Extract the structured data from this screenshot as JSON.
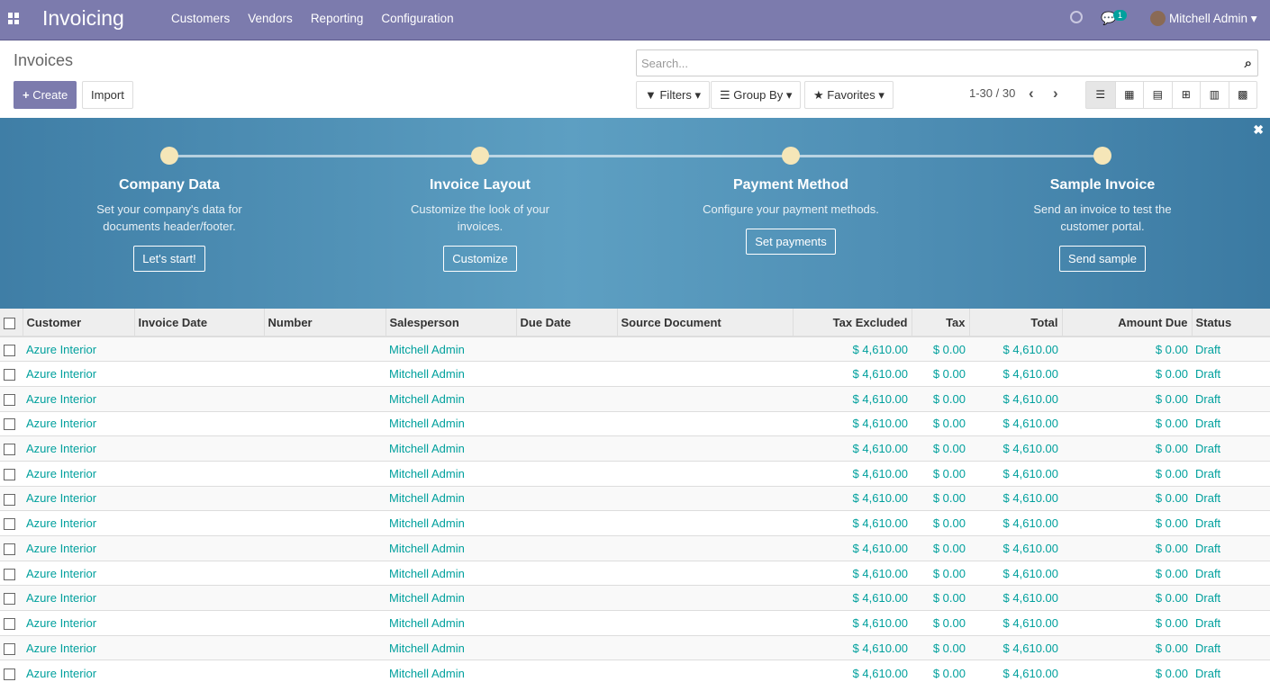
{
  "navbar": {
    "app_title": "Invoicing",
    "menu": [
      "Customers",
      "Vendors",
      "Reporting",
      "Configuration"
    ],
    "message_count": "1",
    "user": "Mitchell Admin"
  },
  "page": {
    "title": "Invoices",
    "create_label": "Create",
    "import_label": "Import"
  },
  "search": {
    "placeholder": "Search...",
    "filters": "Filters",
    "group_by": "Group By",
    "favorites": "Favorites"
  },
  "pager": {
    "text": "1-30 / 30"
  },
  "banner": {
    "steps": [
      {
        "title": "Company Data",
        "desc": "Set your company's data for documents header/footer.",
        "button": "Let's start!"
      },
      {
        "title": "Invoice Layout",
        "desc": "Customize the look of your invoices.",
        "button": "Customize"
      },
      {
        "title": "Payment Method",
        "desc": "Configure your payment methods.",
        "button": "Set payments"
      },
      {
        "title": "Sample Invoice",
        "desc": "Send an invoice to test the customer portal.",
        "button": "Send sample"
      }
    ]
  },
  "table": {
    "columns": [
      "Customer",
      "Invoice Date",
      "Number",
      "Salesperson",
      "Due Date",
      "Source Document",
      "Tax Excluded",
      "Tax",
      "Total",
      "Amount Due",
      "Status"
    ],
    "rows": [
      {
        "customer": "Azure Interior",
        "salesperson": "Mitchell Admin",
        "tax_excluded": "$ 4,610.00",
        "tax": "$ 0.00",
        "total": "$ 4,610.00",
        "amount_due": "$ 0.00",
        "status": "Draft"
      },
      {
        "customer": "Azure Interior",
        "salesperson": "Mitchell Admin",
        "tax_excluded": "$ 4,610.00",
        "tax": "$ 0.00",
        "total": "$ 4,610.00",
        "amount_due": "$ 0.00",
        "status": "Draft"
      },
      {
        "customer": "Azure Interior",
        "salesperson": "Mitchell Admin",
        "tax_excluded": "$ 4,610.00",
        "tax": "$ 0.00",
        "total": "$ 4,610.00",
        "amount_due": "$ 0.00",
        "status": "Draft"
      },
      {
        "customer": "Azure Interior",
        "salesperson": "Mitchell Admin",
        "tax_excluded": "$ 4,610.00",
        "tax": "$ 0.00",
        "total": "$ 4,610.00",
        "amount_due": "$ 0.00",
        "status": "Draft"
      },
      {
        "customer": "Azure Interior",
        "salesperson": "Mitchell Admin",
        "tax_excluded": "$ 4,610.00",
        "tax": "$ 0.00",
        "total": "$ 4,610.00",
        "amount_due": "$ 0.00",
        "status": "Draft"
      },
      {
        "customer": "Azure Interior",
        "salesperson": "Mitchell Admin",
        "tax_excluded": "$ 4,610.00",
        "tax": "$ 0.00",
        "total": "$ 4,610.00",
        "amount_due": "$ 0.00",
        "status": "Draft"
      },
      {
        "customer": "Azure Interior",
        "salesperson": "Mitchell Admin",
        "tax_excluded": "$ 4,610.00",
        "tax": "$ 0.00",
        "total": "$ 4,610.00",
        "amount_due": "$ 0.00",
        "status": "Draft"
      },
      {
        "customer": "Azure Interior",
        "salesperson": "Mitchell Admin",
        "tax_excluded": "$ 4,610.00",
        "tax": "$ 0.00",
        "total": "$ 4,610.00",
        "amount_due": "$ 0.00",
        "status": "Draft"
      },
      {
        "customer": "Azure Interior",
        "salesperson": "Mitchell Admin",
        "tax_excluded": "$ 4,610.00",
        "tax": "$ 0.00",
        "total": "$ 4,610.00",
        "amount_due": "$ 0.00",
        "status": "Draft"
      },
      {
        "customer": "Azure Interior",
        "salesperson": "Mitchell Admin",
        "tax_excluded": "$ 4,610.00",
        "tax": "$ 0.00",
        "total": "$ 4,610.00",
        "amount_due": "$ 0.00",
        "status": "Draft"
      },
      {
        "customer": "Azure Interior",
        "salesperson": "Mitchell Admin",
        "tax_excluded": "$ 4,610.00",
        "tax": "$ 0.00",
        "total": "$ 4,610.00",
        "amount_due": "$ 0.00",
        "status": "Draft"
      },
      {
        "customer": "Azure Interior",
        "salesperson": "Mitchell Admin",
        "tax_excluded": "$ 4,610.00",
        "tax": "$ 0.00",
        "total": "$ 4,610.00",
        "amount_due": "$ 0.00",
        "status": "Draft"
      },
      {
        "customer": "Azure Interior",
        "salesperson": "Mitchell Admin",
        "tax_excluded": "$ 4,610.00",
        "tax": "$ 0.00",
        "total": "$ 4,610.00",
        "amount_due": "$ 0.00",
        "status": "Draft"
      },
      {
        "customer": "Azure Interior",
        "salesperson": "Mitchell Admin",
        "tax_excluded": "$ 4,610.00",
        "tax": "$ 0.00",
        "total": "$ 4,610.00",
        "amount_due": "$ 0.00",
        "status": "Draft"
      }
    ]
  },
  "colors": {
    "brand": "#7c7bad",
    "link": "#00a09d"
  }
}
